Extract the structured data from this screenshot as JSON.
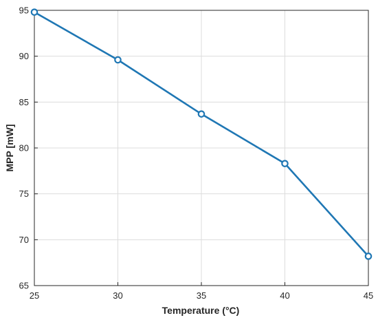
{
  "chart_data": {
    "type": "line",
    "title": "",
    "xlabel": "Temperature (°C)",
    "ylabel": "MPP [mW]",
    "xlim": [
      25,
      45
    ],
    "ylim": [
      65,
      95
    ],
    "x_ticks": [
      25,
      30,
      35,
      40,
      45
    ],
    "y_ticks": [
      65,
      70,
      75,
      80,
      85,
      90,
      95
    ],
    "grid": true,
    "series": [
      {
        "x": [
          25,
          30,
          35,
          40,
          45
        ],
        "y": [
          94.8,
          89.6,
          83.7,
          78.3,
          68.2
        ],
        "color": "#1f77b4",
        "marker": "circle"
      }
    ]
  }
}
